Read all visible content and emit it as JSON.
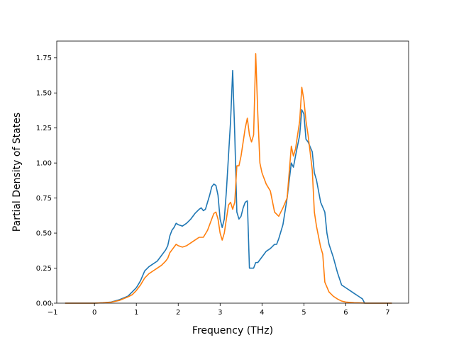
{
  "chart_data": {
    "type": "line",
    "title": "",
    "xlabel": "Frequency (THz)",
    "ylabel": "Partial Density of States",
    "xlim": [
      -0.9,
      7.5
    ],
    "ylim": [
      0,
      1.87
    ],
    "xticks": [
      -1,
      0,
      1,
      2,
      3,
      4,
      5,
      6,
      7
    ],
    "xtick_labels": [
      "−1",
      "0",
      "1",
      "2",
      "3",
      "4",
      "5",
      "6",
      "7"
    ],
    "yticks": [
      0,
      0.25,
      0.5,
      0.75,
      1.0,
      1.25,
      1.5,
      1.75
    ],
    "ytick_labels": [
      "0.00",
      "0.25",
      "0.50",
      "0.75",
      "1.00",
      "1.25",
      "1.50",
      "1.75"
    ],
    "grid": false,
    "legend": "none",
    "series": [
      {
        "color": "#1f77b4",
        "points": [
          [
            -0.7,
            0
          ],
          [
            0,
            0
          ],
          [
            0.2,
            0.003
          ],
          [
            0.4,
            0.008
          ],
          [
            0.6,
            0.025
          ],
          [
            0.8,
            0.05
          ],
          [
            0.9,
            0.08
          ],
          [
            1.0,
            0.11
          ],
          [
            1.1,
            0.16
          ],
          [
            1.2,
            0.23
          ],
          [
            1.3,
            0.26
          ],
          [
            1.4,
            0.28
          ],
          [
            1.5,
            0.3
          ],
          [
            1.6,
            0.34
          ],
          [
            1.7,
            0.38
          ],
          [
            1.75,
            0.41
          ],
          [
            1.8,
            0.48
          ],
          [
            1.85,
            0.52
          ],
          [
            1.9,
            0.54
          ],
          [
            1.95,
            0.57
          ],
          [
            2.0,
            0.56
          ],
          [
            2.1,
            0.55
          ],
          [
            2.2,
            0.57
          ],
          [
            2.3,
            0.6
          ],
          [
            2.4,
            0.64
          ],
          [
            2.5,
            0.67
          ],
          [
            2.55,
            0.68
          ],
          [
            2.6,
            0.66
          ],
          [
            2.65,
            0.67
          ],
          [
            2.7,
            0.72
          ],
          [
            2.75,
            0.77
          ],
          [
            2.8,
            0.83
          ],
          [
            2.85,
            0.85
          ],
          [
            2.9,
            0.84
          ],
          [
            2.95,
            0.77
          ],
          [
            3.0,
            0.6
          ],
          [
            3.05,
            0.54
          ],
          [
            3.1,
            0.6
          ],
          [
            3.15,
            0.8
          ],
          [
            3.2,
            1.05
          ],
          [
            3.25,
            1.3
          ],
          [
            3.3,
            1.66
          ],
          [
            3.35,
            1.2
          ],
          [
            3.4,
            0.65
          ],
          [
            3.45,
            0.6
          ],
          [
            3.5,
            0.62
          ],
          [
            3.55,
            0.68
          ],
          [
            3.6,
            0.72
          ],
          [
            3.65,
            0.73
          ],
          [
            3.7,
            0.25
          ],
          [
            3.8,
            0.25
          ],
          [
            3.85,
            0.29
          ],
          [
            3.9,
            0.29
          ],
          [
            4.0,
            0.33
          ],
          [
            4.1,
            0.37
          ],
          [
            4.2,
            0.39
          ],
          [
            4.3,
            0.42
          ],
          [
            4.35,
            0.42
          ],
          [
            4.4,
            0.46
          ],
          [
            4.5,
            0.56
          ],
          [
            4.6,
            0.75
          ],
          [
            4.7,
            1.0
          ],
          [
            4.75,
            0.97
          ],
          [
            4.8,
            1.05
          ],
          [
            4.9,
            1.2
          ],
          [
            4.95,
            1.38
          ],
          [
            5.0,
            1.35
          ],
          [
            5.05,
            1.17
          ],
          [
            5.1,
            1.15
          ],
          [
            5.2,
            1.08
          ],
          [
            5.25,
            0.93
          ],
          [
            5.3,
            0.88
          ],
          [
            5.35,
            0.8
          ],
          [
            5.4,
            0.72
          ],
          [
            5.5,
            0.65
          ],
          [
            5.55,
            0.5
          ],
          [
            5.6,
            0.42
          ],
          [
            5.7,
            0.33
          ],
          [
            5.8,
            0.22
          ],
          [
            5.9,
            0.13
          ],
          [
            6.0,
            0.11
          ],
          [
            6.1,
            0.09
          ],
          [
            6.2,
            0.07
          ],
          [
            6.3,
            0.05
          ],
          [
            6.4,
            0.03
          ],
          [
            6.45,
            0.0
          ],
          [
            7.1,
            0.0
          ]
        ]
      },
      {
        "color": "#ff7f0e",
        "points": [
          [
            -0.7,
            0
          ],
          [
            0,
            0
          ],
          [
            0.2,
            0.002
          ],
          [
            0.4,
            0.007
          ],
          [
            0.6,
            0.02
          ],
          [
            0.8,
            0.045
          ],
          [
            0.9,
            0.06
          ],
          [
            1.0,
            0.09
          ],
          [
            1.1,
            0.13
          ],
          [
            1.2,
            0.18
          ],
          [
            1.3,
            0.21
          ],
          [
            1.4,
            0.23
          ],
          [
            1.5,
            0.25
          ],
          [
            1.6,
            0.27
          ],
          [
            1.7,
            0.3
          ],
          [
            1.75,
            0.32
          ],
          [
            1.8,
            0.36
          ],
          [
            1.85,
            0.38
          ],
          [
            1.9,
            0.4
          ],
          [
            1.95,
            0.42
          ],
          [
            2.0,
            0.41
          ],
          [
            2.1,
            0.4
          ],
          [
            2.2,
            0.41
          ],
          [
            2.3,
            0.43
          ],
          [
            2.4,
            0.45
          ],
          [
            2.5,
            0.47
          ],
          [
            2.6,
            0.47
          ],
          [
            2.7,
            0.52
          ],
          [
            2.8,
            0.6
          ],
          [
            2.85,
            0.64
          ],
          [
            2.9,
            0.65
          ],
          [
            2.95,
            0.6
          ],
          [
            3.0,
            0.5
          ],
          [
            3.05,
            0.45
          ],
          [
            3.1,
            0.5
          ],
          [
            3.15,
            0.6
          ],
          [
            3.2,
            0.7
          ],
          [
            3.25,
            0.72
          ],
          [
            3.3,
            0.67
          ],
          [
            3.35,
            0.72
          ],
          [
            3.4,
            0.98
          ],
          [
            3.45,
            0.98
          ],
          [
            3.5,
            1.05
          ],
          [
            3.55,
            1.15
          ],
          [
            3.6,
            1.25
          ],
          [
            3.65,
            1.32
          ],
          [
            3.7,
            1.2
          ],
          [
            3.75,
            1.15
          ],
          [
            3.8,
            1.2
          ],
          [
            3.85,
            1.78
          ],
          [
            3.9,
            1.35
          ],
          [
            3.95,
            1.0
          ],
          [
            4.0,
            0.93
          ],
          [
            4.1,
            0.85
          ],
          [
            4.2,
            0.8
          ],
          [
            4.3,
            0.65
          ],
          [
            4.4,
            0.62
          ],
          [
            4.5,
            0.68
          ],
          [
            4.6,
            0.75
          ],
          [
            4.7,
            1.12
          ],
          [
            4.75,
            1.05
          ],
          [
            4.8,
            1.1
          ],
          [
            4.9,
            1.3
          ],
          [
            4.95,
            1.54
          ],
          [
            5.0,
            1.45
          ],
          [
            5.05,
            1.3
          ],
          [
            5.1,
            1.2
          ],
          [
            5.2,
            0.95
          ],
          [
            5.25,
            0.65
          ],
          [
            5.3,
            0.55
          ],
          [
            5.4,
            0.4
          ],
          [
            5.45,
            0.35
          ],
          [
            5.5,
            0.15
          ],
          [
            5.6,
            0.08
          ],
          [
            5.7,
            0.05
          ],
          [
            5.8,
            0.03
          ],
          [
            5.9,
            0.015
          ],
          [
            6.0,
            0.008
          ],
          [
            6.2,
            0.003
          ],
          [
            6.5,
            0.0
          ],
          [
            7.1,
            0.0
          ]
        ]
      }
    ]
  }
}
